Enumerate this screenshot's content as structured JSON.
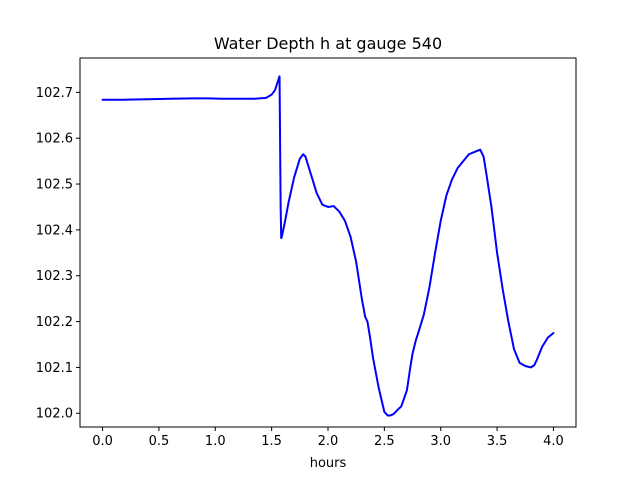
{
  "chart_data": {
    "type": "line",
    "title": "Water Depth h at gauge 540",
    "xlabel": "hours",
    "ylabel": "",
    "xlim": [
      -0.2,
      4.2
    ],
    "ylim": [
      101.97,
      102.775
    ],
    "xticks": [
      0.0,
      0.5,
      1.0,
      1.5,
      2.0,
      2.5,
      3.0,
      3.5,
      4.0
    ],
    "xtick_labels": [
      "0.0",
      "0.5",
      "1.0",
      "1.5",
      "2.0",
      "2.5",
      "3.0",
      "3.5",
      "4.0"
    ],
    "yticks": [
      102.0,
      102.1,
      102.2,
      102.3,
      102.4,
      102.5,
      102.6,
      102.7
    ],
    "ytick_labels": [
      "102.0",
      "102.1",
      "102.2",
      "102.3",
      "102.4",
      "102.5",
      "102.6",
      "102.7"
    ],
    "grid": false,
    "legend": "none",
    "series": [
      {
        "color": "#0000ff",
        "x": [
          0.0,
          0.2,
          0.4,
          0.6,
          0.8,
          0.95,
          1.05,
          1.2,
          1.35,
          1.45,
          1.5,
          1.53,
          1.55,
          1.57,
          1.58,
          1.585,
          1.59,
          1.62,
          1.65,
          1.7,
          1.75,
          1.78,
          1.8,
          1.85,
          1.9,
          1.95,
          2.0,
          2.05,
          2.1,
          2.15,
          2.2,
          2.25,
          2.3,
          2.33,
          2.35,
          2.37,
          2.4,
          2.45,
          2.5,
          2.53,
          2.55,
          2.58,
          2.62,
          2.65,
          2.7,
          2.73,
          2.75,
          2.78,
          2.8,
          2.85,
          2.9,
          2.95,
          3.0,
          3.05,
          3.1,
          3.15,
          3.2,
          3.25,
          3.3,
          3.35,
          3.38,
          3.4,
          3.45,
          3.5,
          3.55,
          3.6,
          3.65,
          3.7,
          3.75,
          3.8,
          3.83,
          3.85,
          3.9,
          3.95,
          4.0
        ],
        "y": [
          102.684,
          102.684,
          102.685,
          102.686,
          102.687,
          102.687,
          102.686,
          102.686,
          102.686,
          102.688,
          102.695,
          102.705,
          102.72,
          102.735,
          102.45,
          102.382,
          102.385,
          102.42,
          102.46,
          102.515,
          102.555,
          102.565,
          102.56,
          102.52,
          102.48,
          102.455,
          102.45,
          102.452,
          102.44,
          102.42,
          102.385,
          102.33,
          102.25,
          102.21,
          102.2,
          102.17,
          102.12,
          102.055,
          102.003,
          101.995,
          101.995,
          101.998,
          102.008,
          102.015,
          102.05,
          102.1,
          102.13,
          102.16,
          102.175,
          102.215,
          102.275,
          102.35,
          102.42,
          102.475,
          102.51,
          102.535,
          102.55,
          102.565,
          102.57,
          102.575,
          102.56,
          102.53,
          102.45,
          102.35,
          102.27,
          102.2,
          102.14,
          102.11,
          102.103,
          102.1,
          102.105,
          102.115,
          102.145,
          102.165,
          102.175
        ]
      }
    ]
  }
}
